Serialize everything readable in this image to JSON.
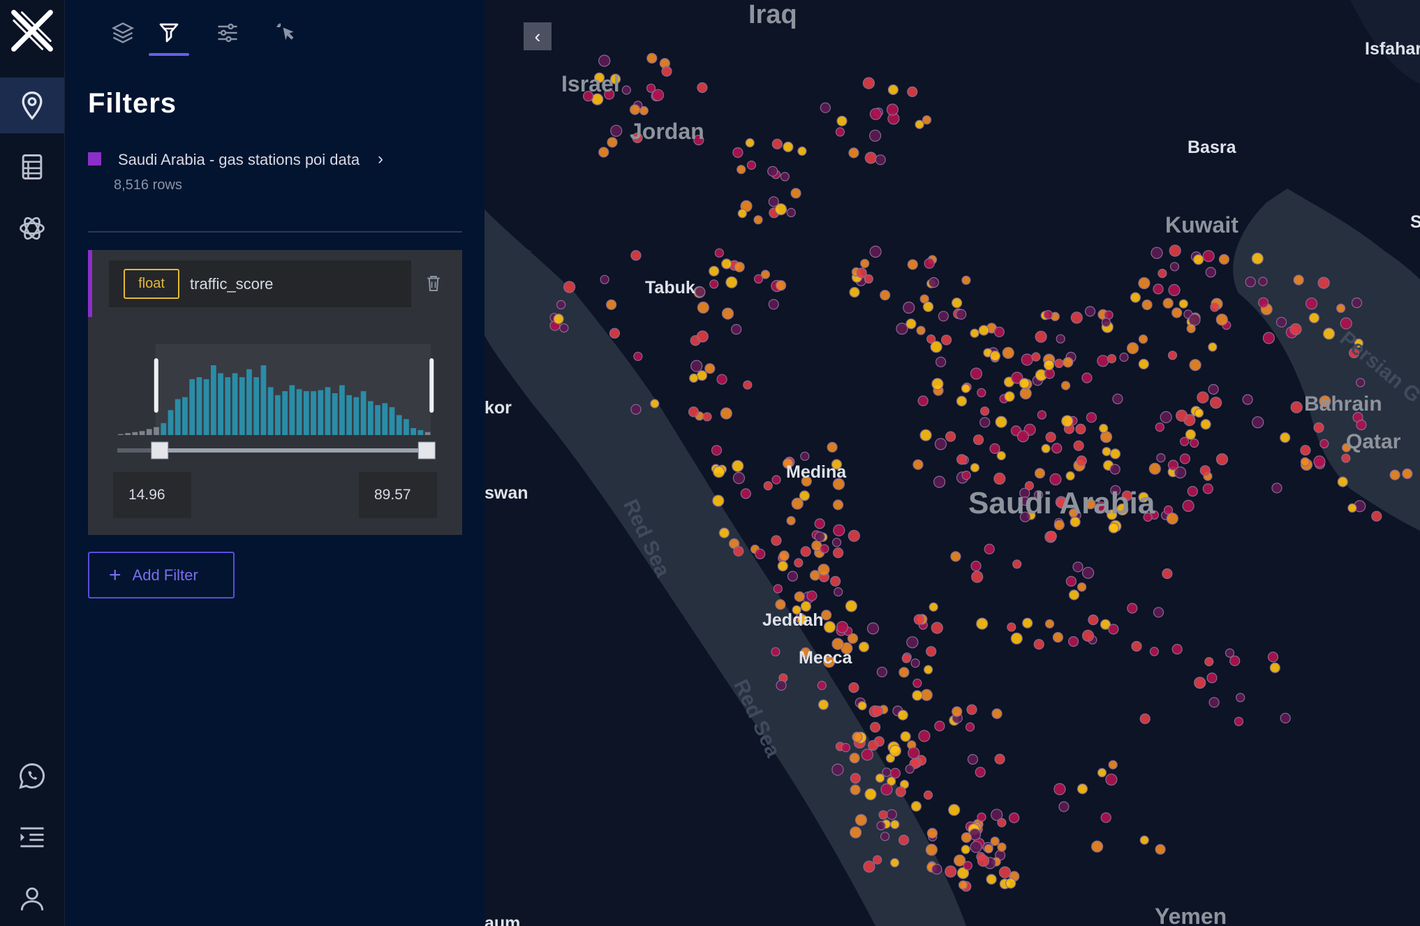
{
  "app": {
    "logo": "x-logo-icon"
  },
  "rail": {
    "top_icons": [
      "location-pin-icon",
      "table-icon",
      "ai-assistant-icon"
    ],
    "bottom_icons": [
      "whatsapp-icon",
      "collapse-list-icon",
      "user-icon"
    ],
    "active": "location-pin-icon"
  },
  "panel": {
    "tabs": [
      {
        "icon": "layers-icon",
        "active": false
      },
      {
        "icon": "filter-icon",
        "active": true
      },
      {
        "icon": "settings-sliders-icon",
        "active": false
      },
      {
        "icon": "cursor-click-icon",
        "active": false
      }
    ],
    "title": "Filters",
    "dataset": {
      "name": "Saudi Arabia - gas stations poi data",
      "rows": "8,516 rows",
      "color": "#8b2fc9"
    },
    "filter": {
      "type": "float",
      "field": "traffic_score",
      "min_value": "14.96",
      "max_value": "89.57",
      "selected_range_fraction": [
        0.135,
        0.985
      ],
      "histogram_bins": [
        1,
        2,
        3,
        4,
        6,
        8,
        12,
        25,
        36,
        38,
        56,
        58,
        56,
        70,
        62,
        58,
        62,
        58,
        66,
        58,
        70,
        48,
        40,
        44,
        50,
        46,
        44,
        44,
        45,
        48,
        42,
        50,
        40,
        38,
        44,
        34,
        30,
        32,
        28,
        20,
        16,
        7,
        5,
        3
      ],
      "histogram_color": "#2a8da8"
    },
    "add_filter_label": "Add Filter"
  },
  "map": {
    "labels": {
      "iraq": "Iraq",
      "israel": "Israel",
      "jordan": "Jordan",
      "basra": "Basra",
      "kuwait": "Kuwait",
      "isfahan": "Isfahar",
      "tabuk": "Tabuk",
      "medina": "Medina",
      "saudi": "Saudi Arabia",
      "jeddah": "Jeddah",
      "mecca": "Mecca",
      "bahrain": "Bahrain",
      "qatar": "Qatar",
      "yemen": "Yemen",
      "persian": "Persian G",
      "red_sea_1": "Red Sea",
      "red_sea_2": "Red Sea",
      "kor": "kor",
      "aswan": "swan",
      "sum": "aum",
      "s_edge": "S"
    },
    "point_colors": [
      "#ffc20e",
      "#f08a24",
      "#e23d44",
      "#b3124f",
      "#5e1a54"
    ]
  }
}
